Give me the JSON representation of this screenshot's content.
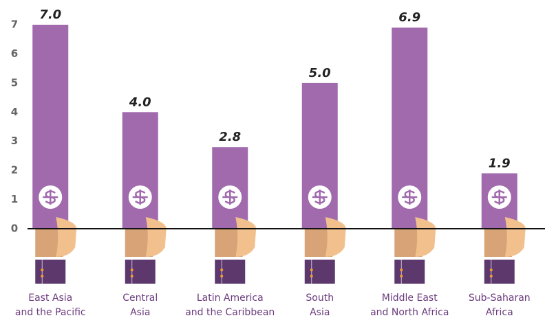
{
  "chart_data": {
    "type": "bar",
    "categories": [
      "East Asia\nand the Pacific",
      "Central\nAsia",
      "Latin America\nand the Caribbean",
      "South\nAsia",
      "Middle East\nand North Africa",
      "Sub-Saharan\nAfrica"
    ],
    "values": [
      7.0,
      4.0,
      2.8,
      5.0,
      6.9,
      1.9
    ],
    "value_labels": [
      "7.0",
      "4.0",
      "2.8",
      "5.0",
      "6.9",
      "1.9"
    ],
    "color": "#a06aad",
    "ylim": [
      0,
      7
    ],
    "yticks": [
      0,
      1,
      2,
      3,
      4,
      5,
      6,
      7
    ]
  }
}
